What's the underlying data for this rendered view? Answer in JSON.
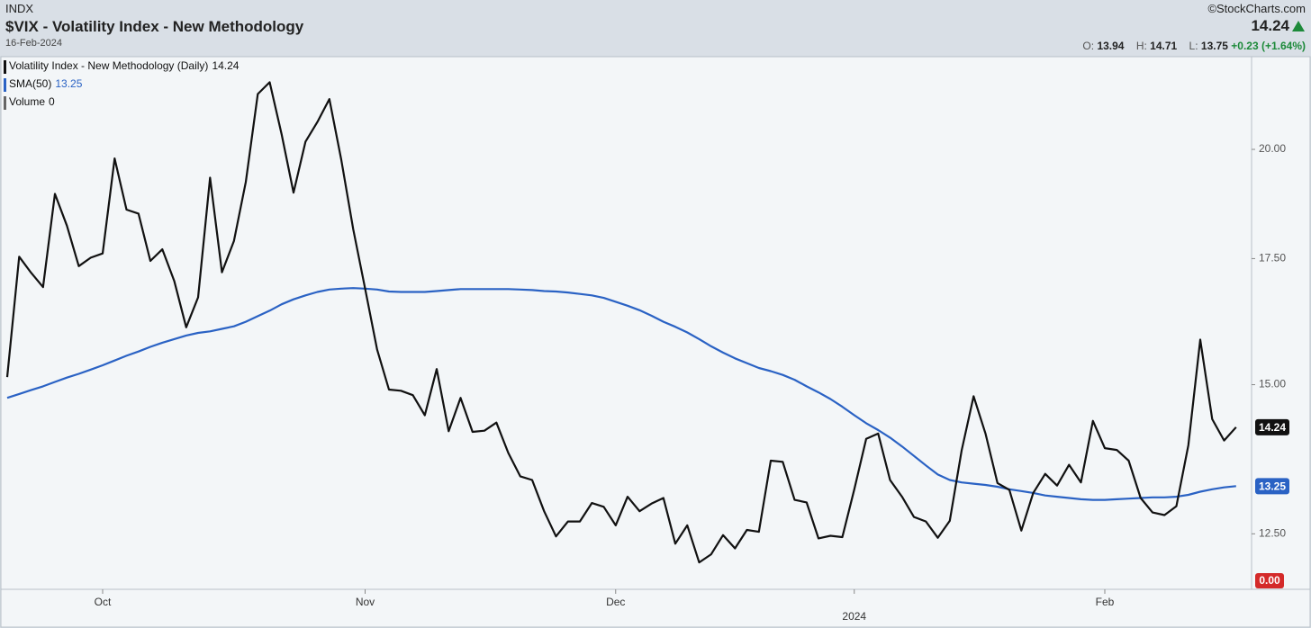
{
  "header": {
    "exchange": "INDX",
    "title": "$VIX - Volatility Index - New Methodology",
    "date": "16-Feb-2024",
    "source": "©StockCharts.com",
    "last": "14.24",
    "open_label": "O:",
    "open": "13.94",
    "high_label": "H:",
    "high": "14.71",
    "low_label": "L:",
    "low": "13.75",
    "change": "+0.23 (+1.64%)"
  },
  "chart_data": {
    "type": "line",
    "yscale": "log",
    "ylim": [
      11.68,
      22.4
    ],
    "yticks": [
      {
        "value": 12.5,
        "label": "12.50"
      },
      {
        "value": 15,
        "label": "15.00"
      },
      {
        "value": 17.5,
        "label": "17.50"
      },
      {
        "value": 20,
        "label": "20.00"
      }
    ],
    "grid": false,
    "categories": [
      null,
      null,
      null,
      null,
      null,
      null,
      null,
      null,
      "Oct",
      null,
      null,
      null,
      null,
      null,
      null,
      null,
      null,
      null,
      null,
      null,
      null,
      null,
      null,
      null,
      null,
      null,
      null,
      null,
      null,
      null,
      "Nov",
      null,
      null,
      null,
      null,
      null,
      null,
      null,
      null,
      null,
      null,
      null,
      null,
      null,
      null,
      null,
      null,
      null,
      null,
      null,
      null,
      "Dec",
      null,
      null,
      null,
      null,
      null,
      null,
      null,
      null,
      null,
      null,
      null,
      null,
      null,
      null,
      null,
      null,
      null,
      null,
      null,
      "2024",
      null,
      null,
      null,
      null,
      null,
      null,
      null,
      null,
      null,
      null,
      null,
      null,
      null,
      null,
      null,
      null,
      null,
      null,
      null,
      null,
      "Feb",
      null,
      null,
      null,
      null,
      null,
      null,
      null,
      null,
      null,
      null,
      null
    ],
    "series": [
      {
        "name": "Volatility Index - New Methodology (Daily)",
        "color": "#111111",
        "values": [
          15.14,
          17.54,
          17.2,
          16.9,
          18.94,
          18.22,
          17.34,
          17.52,
          17.61,
          19.78,
          18.58,
          18.49,
          17.45,
          17.7,
          17.03,
          16.09,
          16.69,
          19.32,
          17.21,
          17.88,
          19.22,
          21.4,
          21.71,
          20.37,
          18.97,
          20.19,
          20.68,
          21.27,
          19.75,
          18.14,
          16.87,
          15.66,
          14.91,
          14.89,
          14.81,
          14.45,
          15.29,
          14.17,
          14.76,
          14.16,
          14.18,
          14.32,
          13.8,
          13.41,
          13.35,
          12.85,
          12.46,
          12.69,
          12.69,
          12.98,
          12.92,
          12.63,
          13.08,
          12.85,
          12.97,
          13.06,
          12.35,
          12.63,
          12.07,
          12.19,
          12.48,
          12.28,
          12.56,
          12.53,
          13.67,
          13.65,
          13.03,
          12.99,
          12.43,
          12.47,
          12.45,
          13.2,
          14.04,
          14.13,
          13.35,
          13.08,
          12.76,
          12.69,
          12.44,
          12.7,
          13.84,
          14.79,
          14.13,
          13.3,
          13.19,
          12.55,
          13.14,
          13.45,
          13.26,
          13.6,
          13.31,
          14.35,
          13.88,
          13.85,
          13.67,
          13.06,
          12.83,
          12.79,
          12.93,
          13.93,
          15.85,
          14.38,
          14.01,
          14.24
        ]
      },
      {
        "name": "SMA(50)",
        "color": "#2a62c4",
        "values": [
          14.76,
          14.83,
          14.9,
          14.97,
          15.05,
          15.13,
          15.2,
          15.28,
          15.36,
          15.45,
          15.54,
          15.62,
          15.71,
          15.79,
          15.86,
          15.93,
          15.98,
          16.01,
          16.06,
          16.11,
          16.2,
          16.31,
          16.42,
          16.55,
          16.65,
          16.73,
          16.8,
          16.85,
          16.87,
          16.88,
          16.87,
          16.85,
          16.81,
          16.8,
          16.8,
          16.8,
          16.82,
          16.84,
          16.86,
          16.86,
          16.86,
          16.86,
          16.86,
          16.85,
          16.84,
          16.82,
          16.81,
          16.79,
          16.76,
          16.73,
          16.68,
          16.6,
          16.52,
          16.43,
          16.32,
          16.2,
          16.1,
          15.99,
          15.86,
          15.72,
          15.6,
          15.49,
          15.4,
          15.31,
          15.25,
          15.18,
          15.09,
          14.97,
          14.86,
          14.74,
          14.6,
          14.45,
          14.31,
          14.19,
          14.06,
          13.91,
          13.75,
          13.59,
          13.44,
          13.35,
          13.31,
          13.29,
          13.27,
          13.24,
          13.2,
          13.17,
          13.14,
          13.1,
          13.08,
          13.06,
          13.04,
          13.03,
          13.03,
          13.04,
          13.05,
          13.06,
          13.07,
          13.07,
          13.08,
          13.11,
          13.16,
          13.2,
          13.23,
          13.25
        ]
      }
    ],
    "volume": {
      "name": "Volume",
      "color": "#666666",
      "value": 0,
      "label": "0.00"
    }
  }
}
